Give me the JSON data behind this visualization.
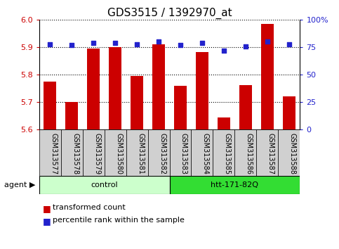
{
  "title": "GDS3515 / 1392970_at",
  "samples": [
    "GSM313577",
    "GSM313578",
    "GSM313579",
    "GSM313580",
    "GSM313581",
    "GSM313582",
    "GSM313583",
    "GSM313584",
    "GSM313585",
    "GSM313586",
    "GSM313587",
    "GSM313588"
  ],
  "red_values": [
    5.775,
    5.7,
    5.895,
    5.9,
    5.795,
    5.91,
    5.76,
    5.882,
    5.645,
    5.763,
    5.985,
    5.72
  ],
  "blue_values": [
    78,
    77,
    79,
    79,
    78,
    80,
    77,
    79,
    72,
    76,
    80,
    78
  ],
  "ylim_left": [
    5.6,
    6.0
  ],
  "ylim_right": [
    0,
    100
  ],
  "yticks_left": [
    5.6,
    5.7,
    5.8,
    5.9,
    6.0
  ],
  "yticks_right": [
    0,
    25,
    50,
    75,
    100
  ],
  "ytick_right_labels": [
    "0",
    "25",
    "50",
    "75",
    "100%"
  ],
  "control_samples": 6,
  "htt_samples": 6,
  "control_label": "control",
  "htt_label": "htt-171-82Q",
  "control_color": "#ccffcc",
  "htt_color": "#33dd33",
  "agent_label": "agent",
  "bar_color": "#cc0000",
  "dot_color": "#2222cc",
  "grid_color": "#000000",
  "bg_color": "#ffffff",
  "sample_cell_color": "#d0d0d0",
  "left_tick_color": "#cc0000",
  "right_tick_color": "#2222cc",
  "legend_red": "transformed count",
  "legend_blue": "percentile rank within the sample",
  "title_fontsize": 11,
  "tick_fontsize": 8,
  "sample_fontsize": 7,
  "legend_fontsize": 8
}
